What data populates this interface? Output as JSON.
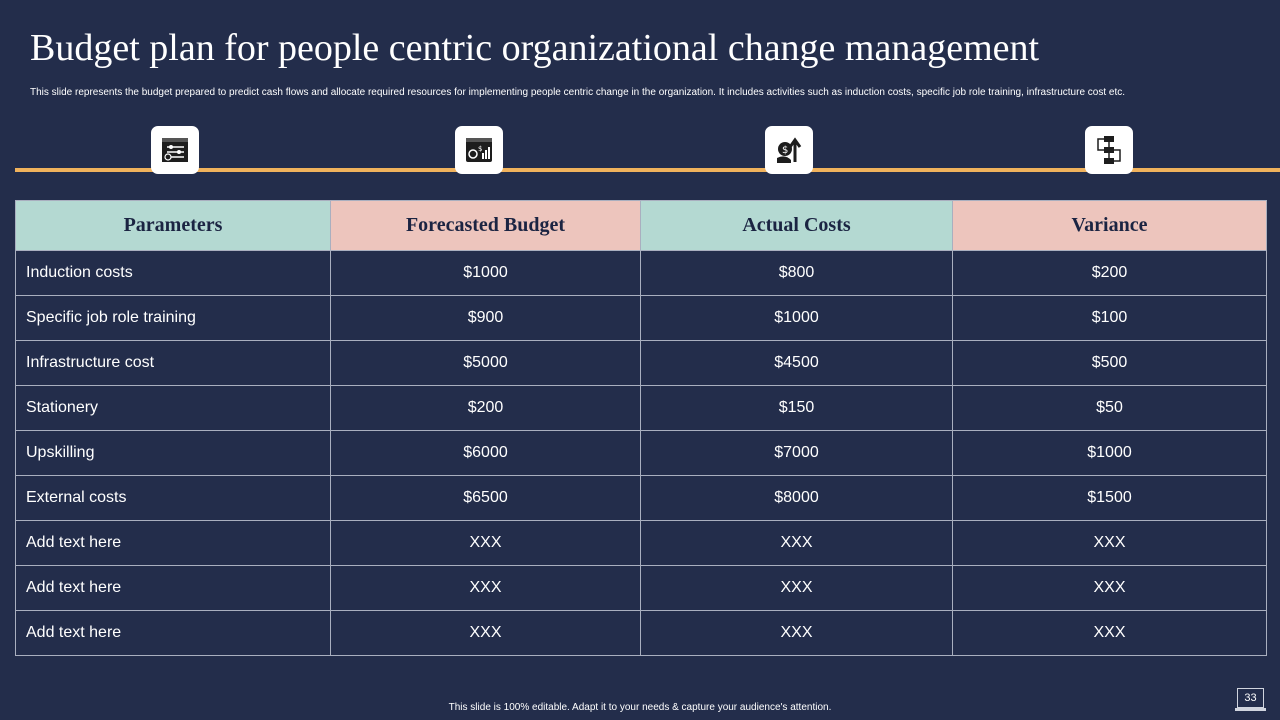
{
  "slide": {
    "title": "Budget plan for people centric organizational change management",
    "subtitle": "This slide represents the budget prepared to predict cash flows and allocate required resources for implementing people  centric change in the organization. It includes activities such as induction costs, specific job role training, infrastructure cost etc.",
    "footer": "This slide is 100% editable.  Adapt it to your needs & capture your audience's attention.",
    "page_number": "33"
  },
  "icons": [
    "settings-panel-icon",
    "financial-dashboard-icon",
    "money-growth-icon",
    "flowchart-icon"
  ],
  "colors": {
    "background": "#232d4b",
    "timeline": "#f0b25c",
    "header_teal": "#b4d9d2",
    "header_pink": "#edc5bd"
  },
  "table": {
    "headers": [
      "Parameters",
      "Forecasted Budget",
      "Actual Costs",
      "Variance"
    ],
    "rows": [
      [
        "Induction  costs",
        "$1000",
        "$800",
        "$200"
      ],
      [
        "Specific job role training",
        "$900",
        "$1000",
        "$100"
      ],
      [
        "Infrastructure  cost",
        "$5000",
        "$4500",
        "$500"
      ],
      [
        "Stationery",
        "$200",
        "$150",
        "$50"
      ],
      [
        "Upskilling",
        "$6000",
        "$7000",
        "$1000"
      ],
      [
        "External  costs",
        "$6500",
        "$8000",
        "$1500"
      ],
      [
        "Add text here",
        "XXX",
        "XXX",
        "XXX"
      ],
      [
        "Add text here",
        "XXX",
        "XXX",
        "XXX"
      ],
      [
        "Add text here",
        "XXX",
        "XXX",
        "XXX"
      ]
    ]
  }
}
